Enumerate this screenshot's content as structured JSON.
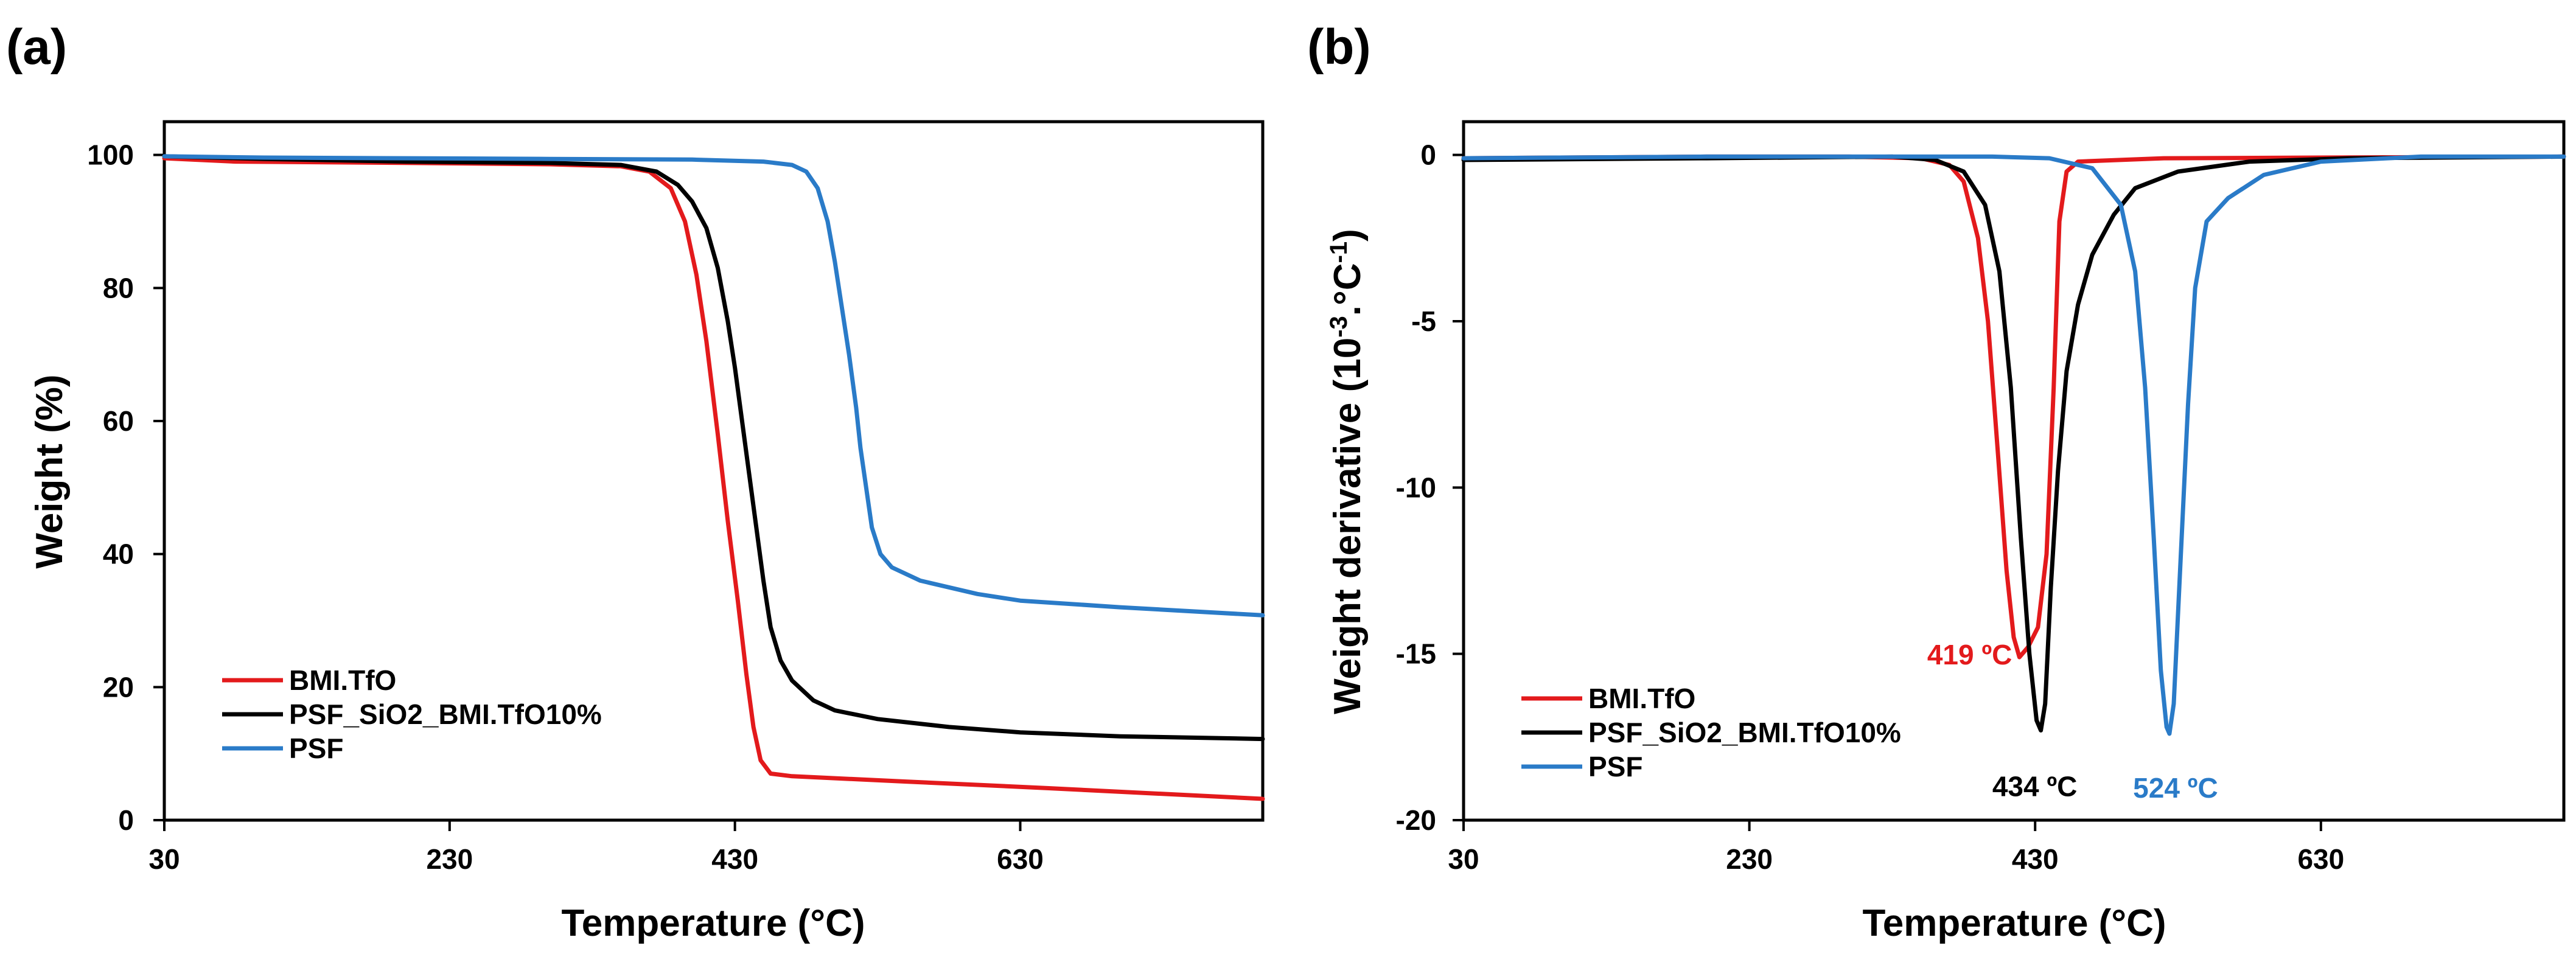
{
  "colors": {
    "red": "#e31a1c",
    "black": "#000000",
    "blue": "#2a7bc8"
  },
  "chart_data": [
    {
      "panel": "(a)",
      "type": "line",
      "xlabel": "Temperature (°C)",
      "ylabel": "Weight (%)",
      "xlim": [
        30,
        800
      ],
      "ylim": [
        0,
        105
      ],
      "xticks": [
        30,
        230,
        430,
        630
      ],
      "yticks": [
        0,
        20,
        40,
        60,
        80,
        100
      ],
      "legend_position": "bottom-left",
      "series": [
        {
          "name": "BMI.TfO",
          "color": "#e31a1c",
          "points": [
            [
              30,
              99.5
            ],
            [
              80,
              99.0
            ],
            [
              200,
              98.8
            ],
            [
              300,
              98.6
            ],
            [
              350,
              98.3
            ],
            [
              370,
              97.5
            ],
            [
              385,
              95
            ],
            [
              395,
              90
            ],
            [
              403,
              82
            ],
            [
              410,
              72
            ],
            [
              418,
              58
            ],
            [
              425,
              45
            ],
            [
              432,
              33
            ],
            [
              438,
              22
            ],
            [
              443,
              14
            ],
            [
              448,
              9
            ],
            [
              455,
              7
            ],
            [
              470,
              6.6
            ],
            [
              550,
              5.8
            ],
            [
              650,
              4.8
            ],
            [
              800,
              3.2
            ]
          ]
        },
        {
          "name": "PSF_SiO2_BMI.TfO10%",
          "color": "#000000",
          "points": [
            [
              30,
              99.8
            ],
            [
              100,
              99.4
            ],
            [
              200,
              99.0
            ],
            [
              300,
              98.8
            ],
            [
              350,
              98.5
            ],
            [
              375,
              97.5
            ],
            [
              390,
              95.5
            ],
            [
              400,
              93
            ],
            [
              410,
              89
            ],
            [
              418,
              83
            ],
            [
              425,
              75
            ],
            [
              430,
              68
            ],
            [
              435,
              60
            ],
            [
              440,
              52
            ],
            [
              445,
              44
            ],
            [
              450,
              36
            ],
            [
              455,
              29
            ],
            [
              462,
              24
            ],
            [
              470,
              21
            ],
            [
              485,
              18
            ],
            [
              500,
              16.5
            ],
            [
              530,
              15.2
            ],
            [
              580,
              14
            ],
            [
              630,
              13.2
            ],
            [
              700,
              12.6
            ],
            [
              800,
              12.2
            ]
          ]
        },
        {
          "name": "PSF",
          "color": "#2a7bc8",
          "points": [
            [
              30,
              99.8
            ],
            [
              100,
              99.6
            ],
            [
              200,
              99.5
            ],
            [
              300,
              99.4
            ],
            [
              400,
              99.3
            ],
            [
              450,
              99.0
            ],
            [
              470,
              98.5
            ],
            [
              480,
              97.5
            ],
            [
              488,
              95
            ],
            [
              495,
              90
            ],
            [
              500,
              84
            ],
            [
              505,
              77
            ],
            [
              510,
              70
            ],
            [
              515,
              62
            ],
            [
              518,
              56
            ],
            [
              522,
              50
            ],
            [
              526,
              44
            ],
            [
              532,
              40
            ],
            [
              540,
              38
            ],
            [
              560,
              36
            ],
            [
              600,
              34
            ],
            [
              630,
              33
            ],
            [
              700,
              32
            ],
            [
              800,
              30.8
            ]
          ]
        }
      ]
    },
    {
      "panel": "(b)",
      "type": "line",
      "xlabel": "Temperature (°C)",
      "ylabel": "Weight derivative (10",
      "ylabel_sup": "-3",
      "ylabel_mid": ".°C",
      "ylabel_sup2": "-1",
      "ylabel_end": ")",
      "xlim": [
        30,
        800
      ],
      "ylim": [
        -20,
        1
      ],
      "xticks": [
        30,
        230,
        430,
        630
      ],
      "yticks": [
        0,
        -5,
        -10,
        -15,
        -20
      ],
      "legend_position": "bottom-left",
      "annotations": [
        {
          "text": "419 ºC",
          "color": "#e31a1c",
          "x": 419,
          "y": -15.1
        },
        {
          "text": "434 ºC",
          "color": "#000000",
          "x": 434,
          "y": -17.3
        },
        {
          "text": "524 ºC",
          "color": "#2a7bc8",
          "x": 524,
          "y": -17.4
        }
      ],
      "series": [
        {
          "name": "BMI.TfO",
          "color": "#e31a1c",
          "points": [
            [
              30,
              -0.1
            ],
            [
              200,
              -0.05
            ],
            [
              300,
              -0.05
            ],
            [
              350,
              -0.1
            ],
            [
              370,
              -0.3
            ],
            [
              380,
              -0.8
            ],
            [
              390,
              -2.5
            ],
            [
              397,
              -5
            ],
            [
              404,
              -9
            ],
            [
              410,
              -12.5
            ],
            [
              415,
              -14.5
            ],
            [
              419,
              -15.1
            ],
            [
              425,
              -14.8
            ],
            [
              432,
              -14.2
            ],
            [
              438,
              -12
            ],
            [
              443,
              -7
            ],
            [
              447,
              -2
            ],
            [
              452,
              -0.5
            ],
            [
              460,
              -0.2
            ],
            [
              520,
              -0.1
            ],
            [
              800,
              -0.05
            ]
          ]
        },
        {
          "name": "PSF_SiO2_BMI.TfO10%",
          "color": "#000000",
          "points": [
            [
              30,
              -0.15
            ],
            [
              200,
              -0.1
            ],
            [
              330,
              -0.05
            ],
            [
              360,
              -0.15
            ],
            [
              380,
              -0.5
            ],
            [
              395,
              -1.5
            ],
            [
              405,
              -3.5
            ],
            [
              413,
              -7
            ],
            [
              420,
              -11.5
            ],
            [
              426,
              -15
            ],
            [
              431,
              -17
            ],
            [
              434,
              -17.3
            ],
            [
              437,
              -16.5
            ],
            [
              441,
              -13
            ],
            [
              446,
              -9.5
            ],
            [
              452,
              -6.5
            ],
            [
              460,
              -4.5
            ],
            [
              470,
              -3
            ],
            [
              485,
              -1.8
            ],
            [
              500,
              -1.0
            ],
            [
              530,
              -0.5
            ],
            [
              580,
              -0.2
            ],
            [
              650,
              -0.1
            ],
            [
              800,
              -0.05
            ]
          ]
        },
        {
          "name": "PSF",
          "color": "#2a7bc8",
          "points": [
            [
              30,
              -0.1
            ],
            [
              200,
              -0.05
            ],
            [
              400,
              -0.05
            ],
            [
              440,
              -0.1
            ],
            [
              470,
              -0.4
            ],
            [
              490,
              -1.5
            ],
            [
              500,
              -3.5
            ],
            [
              507,
              -7
            ],
            [
              513,
              -11.5
            ],
            [
              518,
              -15.5
            ],
            [
              522,
              -17.2
            ],
            [
              524,
              -17.4
            ],
            [
              527,
              -16.5
            ],
            [
              532,
              -12
            ],
            [
              537,
              -7.5
            ],
            [
              542,
              -4
            ],
            [
              550,
              -2
            ],
            [
              565,
              -1.3
            ],
            [
              590,
              -0.6
            ],
            [
              630,
              -0.2
            ],
            [
              700,
              -0.05
            ],
            [
              800,
              -0.05
            ]
          ]
        }
      ]
    }
  ]
}
